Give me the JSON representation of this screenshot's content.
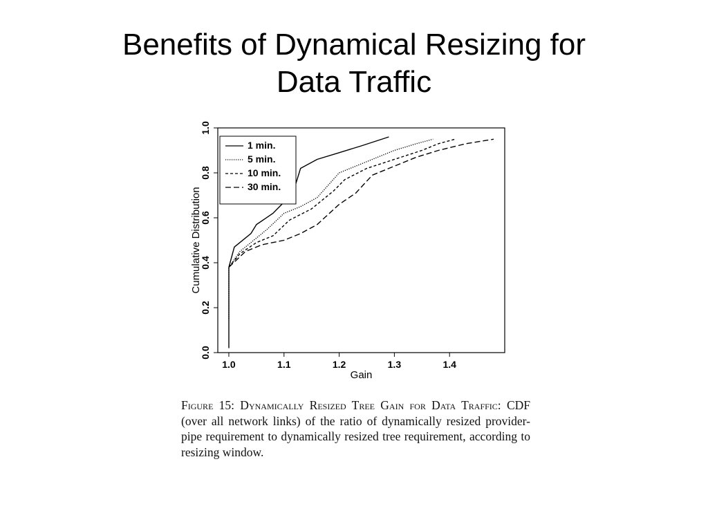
{
  "slide": {
    "title_line1": "Benefits of Dynamical Resizing for",
    "title_line2": "Data Traffic"
  },
  "chart_data": {
    "type": "line",
    "xlabel": "Gain",
    "ylabel": "Cumulative Distribution",
    "xlim": [
      0.98,
      1.5
    ],
    "ylim": [
      0.0,
      1.0
    ],
    "x_ticks": [
      1.0,
      1.1,
      1.2,
      1.3,
      1.4
    ],
    "x_tick_labels": [
      "1.0",
      "1.1",
      "1.2",
      "1.3",
      "1.4"
    ],
    "y_ticks": [
      0.0,
      0.2,
      0.4,
      0.6,
      0.8,
      1.0
    ],
    "y_tick_labels": [
      "0.0",
      "0.2",
      "0.4",
      "0.6",
      "0.8",
      "1.0"
    ],
    "grid": false,
    "legend_position": "top-left",
    "series": [
      {
        "name": "1 min.",
        "style": "solid",
        "color": "#000000",
        "points": [
          [
            1.0,
            0.02
          ],
          [
            1.0,
            0.38
          ],
          [
            1.01,
            0.47
          ],
          [
            1.02,
            0.49
          ],
          [
            1.04,
            0.53
          ],
          [
            1.05,
            0.57
          ],
          [
            1.08,
            0.62
          ],
          [
            1.1,
            0.67
          ],
          [
            1.12,
            0.74
          ],
          [
            1.13,
            0.82
          ],
          [
            1.16,
            0.86
          ],
          [
            1.2,
            0.89
          ],
          [
            1.24,
            0.92
          ],
          [
            1.29,
            0.96
          ]
        ]
      },
      {
        "name": "5 min.",
        "style": "dotted",
        "color": "#000000",
        "points": [
          [
            1.0,
            0.15
          ],
          [
            1.0,
            0.38
          ],
          [
            1.02,
            0.45
          ],
          [
            1.05,
            0.51
          ],
          [
            1.07,
            0.55
          ],
          [
            1.1,
            0.62
          ],
          [
            1.13,
            0.65
          ],
          [
            1.16,
            0.69
          ],
          [
            1.2,
            0.8
          ],
          [
            1.23,
            0.83
          ],
          [
            1.26,
            0.86
          ],
          [
            1.3,
            0.9
          ],
          [
            1.34,
            0.93
          ],
          [
            1.37,
            0.95
          ]
        ]
      },
      {
        "name": "10 min.",
        "style": "dashed",
        "color": "#000000",
        "points": [
          [
            1.0,
            0.38
          ],
          [
            1.02,
            0.44
          ],
          [
            1.05,
            0.49
          ],
          [
            1.08,
            0.52
          ],
          [
            1.11,
            0.59
          ],
          [
            1.15,
            0.64
          ],
          [
            1.19,
            0.72
          ],
          [
            1.21,
            0.77
          ],
          [
            1.25,
            0.82
          ],
          [
            1.3,
            0.86
          ],
          [
            1.35,
            0.9
          ],
          [
            1.38,
            0.93
          ],
          [
            1.41,
            0.95
          ]
        ]
      },
      {
        "name": "30 min.",
        "style": "longdash",
        "color": "#000000",
        "points": [
          [
            1.0,
            0.38
          ],
          [
            1.03,
            0.45
          ],
          [
            1.06,
            0.48
          ],
          [
            1.1,
            0.5
          ],
          [
            1.13,
            0.53
          ],
          [
            1.16,
            0.57
          ],
          [
            1.2,
            0.66
          ],
          [
            1.23,
            0.71
          ],
          [
            1.26,
            0.79
          ],
          [
            1.3,
            0.83
          ],
          [
            1.34,
            0.87
          ],
          [
            1.38,
            0.9
          ],
          [
            1.43,
            0.93
          ],
          [
            1.48,
            0.95
          ]
        ]
      }
    ]
  },
  "caption": {
    "lead": "Figure 15: Dynamically Resized Tree Gain for Data Traffic:",
    "body": "CDF (over all network links) of the ratio of dynamically resized provider-pipe requirement to dynamically resized tree requirement, according to resizing window."
  }
}
